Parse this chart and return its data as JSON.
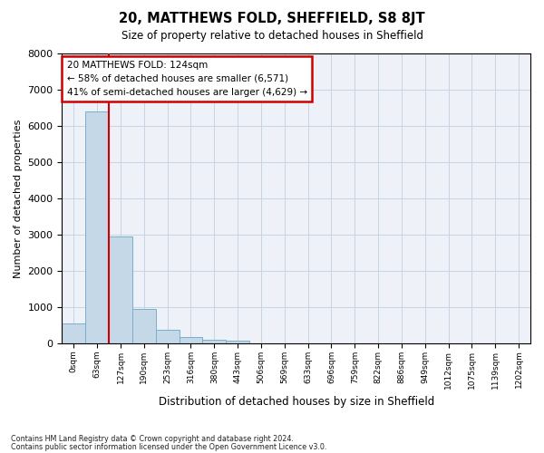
{
  "title": "20, MATTHEWS FOLD, SHEFFIELD, S8 8JT",
  "subtitle": "Size of property relative to detached houses in Sheffield",
  "xlabel": "Distribution of detached houses by size in Sheffield",
  "ylabel": "Number of detached properties",
  "property_label": "20 MATTHEWS FOLD: 124sqm",
  "annotation_line1": "← 58% of detached houses are smaller (6,571)",
  "annotation_line2": "41% of semi-detached houses are larger (4,629) →",
  "bin_labels": [
    "0sqm",
    "63sqm",
    "127sqm",
    "190sqm",
    "253sqm",
    "316sqm",
    "380sqm",
    "443sqm",
    "506sqm",
    "569sqm",
    "633sqm",
    "696sqm",
    "759sqm",
    "822sqm",
    "886sqm",
    "949sqm",
    "1012sqm",
    "1075sqm",
    "1139sqm",
    "1202sqm"
  ],
  "bar_values": [
    560,
    6400,
    2950,
    960,
    370,
    180,
    105,
    80,
    0,
    0,
    0,
    0,
    0,
    0,
    0,
    0,
    0,
    0,
    0,
    0
  ],
  "bar_color": "#c5d8e8",
  "bar_edge_color": "#7aaecb",
  "vline_color": "#cc0000",
  "vline_pos": 1.5,
  "ylim": [
    0,
    8000
  ],
  "yticks": [
    0,
    1000,
    2000,
    3000,
    4000,
    5000,
    6000,
    7000,
    8000
  ],
  "grid_color": "#c8d4e3",
  "bg_color": "#eef2f8",
  "footnote1": "Contains HM Land Registry data © Crown copyright and database right 2024.",
  "footnote2": "Contains public sector information licensed under the Open Government Licence v3.0."
}
